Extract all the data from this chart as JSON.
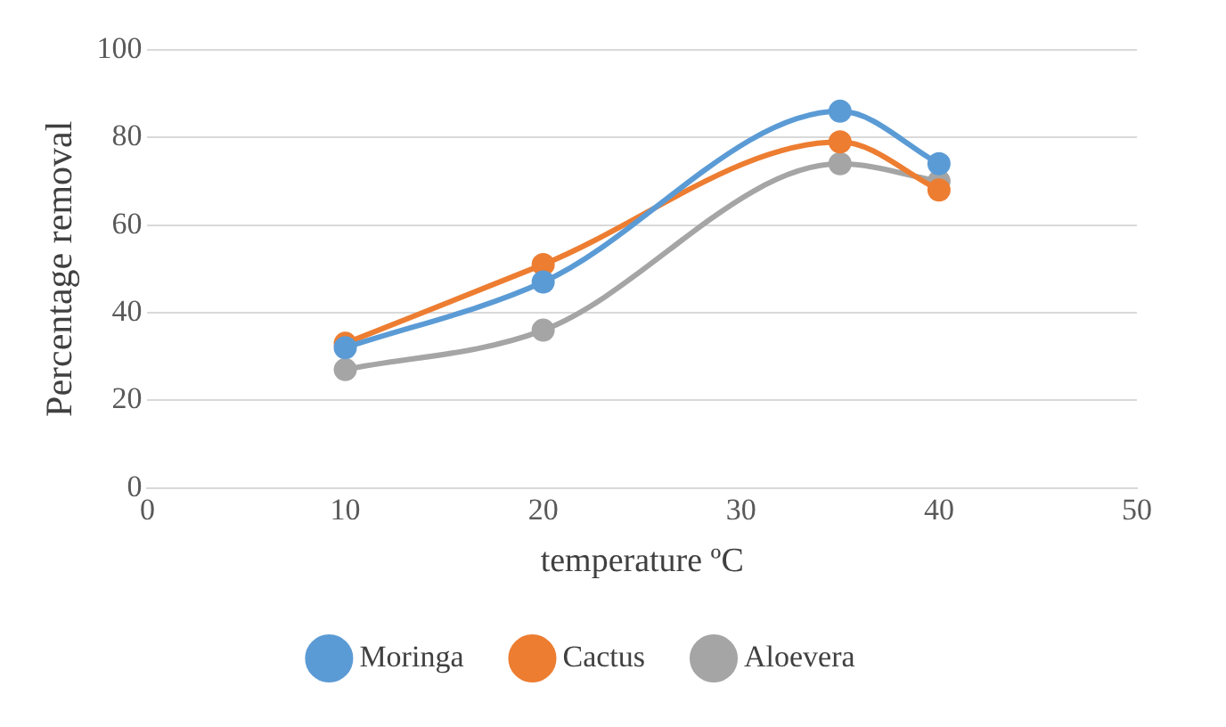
{
  "chart_data": {
    "type": "line",
    "xlabel": "temperature ºC",
    "ylabel": "Percentage removal",
    "x": [
      10,
      20,
      35,
      40
    ],
    "series": [
      {
        "name": "Moringa",
        "color": "#5b9bd5",
        "values": [
          32,
          47,
          86,
          74
        ]
      },
      {
        "name": "Cactus",
        "color": "#ed7d31",
        "values": [
          33,
          51,
          79,
          68
        ]
      },
      {
        "name": "Aloevera",
        "color": "#a5a5a5",
        "values": [
          27,
          36,
          74,
          70
        ]
      }
    ],
    "xlim": [
      0,
      50
    ],
    "xticks": [
      0,
      10,
      20,
      30,
      40,
      50
    ],
    "ylim": [
      0,
      100
    ],
    "yticks": [
      0,
      20,
      40,
      60,
      80,
      100
    ],
    "grid": "y",
    "legend": "bottom",
    "marker": "circle"
  }
}
